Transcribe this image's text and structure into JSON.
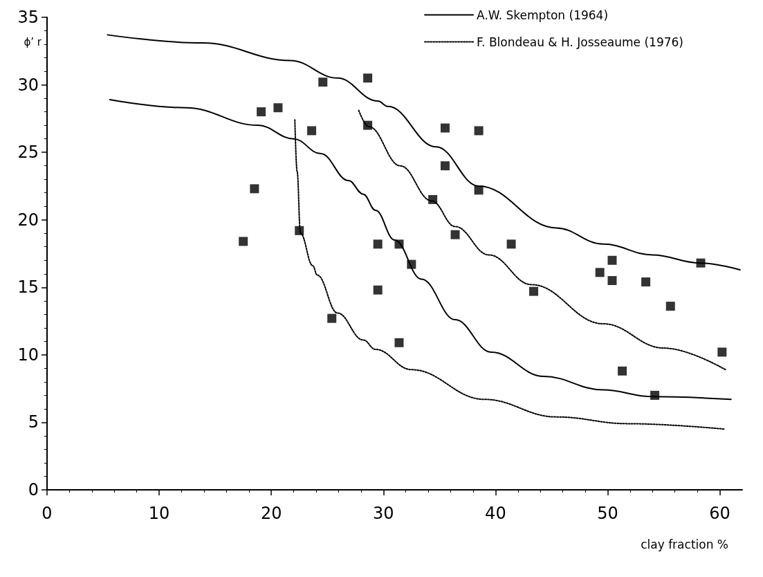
{
  "chart_data": {
    "type": "scatter",
    "xlabel": "clay fraction %",
    "ylabel": "ϕ’ r",
    "xlim": [
      0,
      62
    ],
    "xticks": [
      0,
      10,
      20,
      30,
      40,
      50,
      60
    ],
    "ylim": [
      0,
      35
    ],
    "yticks": [
      0,
      5,
      10,
      15,
      20,
      25,
      30,
      35
    ],
    "grid": false,
    "legend": "top right",
    "series": [
      {
        "color": "#000000",
        "marker": "square",
        "x": [
          17.5,
          18.5,
          19.1,
          20.6,
          22.5,
          23.6,
          24.6,
          28.6,
          28.6,
          35.5,
          38.5,
          35.5,
          38.5,
          34.4,
          36.4,
          41.4,
          29.5,
          31.4,
          32.5,
          50.4,
          49.3,
          50.4,
          53.4,
          58.3,
          29.5,
          43.4,
          55.6,
          60.2,
          51.3,
          54.2,
          31.4,
          25.4
        ],
        "values": [
          18.4,
          22.3,
          28.0,
          28.3,
          19.2,
          26.6,
          30.2,
          30.5,
          27.0,
          26.8,
          26.6,
          24.0,
          22.2,
          21.5,
          18.9,
          18.2,
          18.2,
          18.2,
          16.7,
          17.0,
          16.1,
          15.5,
          15.4,
          16.8,
          14.8,
          14.7,
          13.6,
          10.2,
          8.8,
          7.0,
          10.9,
          12.7
        ]
      },
      {
        "type": "line",
        "name": "A.W. Skempton (1964)",
        "color": "#000000",
        "marker": "none",
        "line_style": "solid",
        "x": [
          5.4,
          13.9,
          21.7,
          25.9,
          29.5,
          30.4,
          34.7,
          38.5,
          45.4,
          49.6,
          54,
          58.2,
          61.8
        ],
        "values": [
          33.7,
          33.1,
          31.8,
          30.5,
          28.8,
          28.4,
          25.4,
          22.5,
          19.4,
          18.2,
          17.4,
          16.8,
          16.3
        ]
      },
      {
        "type": "line",
        "color": "#000000",
        "marker": "none",
        "line_style": "solid",
        "x": [
          5.6,
          12.4,
          18.8,
          22.0,
          24.4,
          26.9,
          28.2,
          29.3,
          31.0,
          33.4,
          36.4,
          39.6,
          44.3,
          49.6,
          54,
          61
        ],
        "values": [
          28.9,
          28.3,
          27.0,
          26.0,
          24.9,
          22.9,
          21.9,
          20.7,
          18.5,
          15.6,
          12.6,
          10.2,
          8.4,
          7.4,
          6.9,
          6.7
        ]
      },
      {
        "type": "line",
        "name": "F. Blondeau & H. Josseaume (1976)",
        "color": "#000000",
        "marker": "none",
        "line_style": "dotted",
        "x": [
          27.8,
          28.7,
          31.5,
          34.3,
          36.4,
          39.4,
          43.2,
          49.6,
          55,
          60.5
        ],
        "values": [
          28.1,
          26.9,
          24.0,
          21.4,
          19.5,
          17.4,
          15.2,
          12.3,
          10.5,
          8.9
        ]
      },
      {
        "type": "line",
        "color": "#000000",
        "marker": "none",
        "line_style": "dotted",
        "x": [
          22.1,
          22.3,
          22.6,
          23.7,
          24.1,
          25.9,
          28.2,
          29.3,
          32.5,
          39,
          45.4,
          51.8,
          60.4
        ],
        "values": [
          27.4,
          23.6,
          19.0,
          16.6,
          15.9,
          13.1,
          11.1,
          10.4,
          8.9,
          6.7,
          5.4,
          4.9,
          4.5
        ]
      }
    ]
  }
}
